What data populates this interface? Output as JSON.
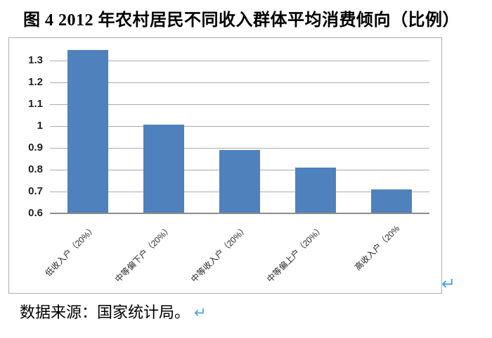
{
  "title": "图 4 2012 年农村居民不同收入群体平均消费倾向（比例）",
  "source_note": "数据来源：国家统计局。",
  "line_break_mark": "↵",
  "colors": {
    "bar": "#4f81bd",
    "gridline": "#ababab",
    "axis": "#8c8c8c",
    "frame_border": "#aeaeae",
    "break_mark_blue": "#47a3f3",
    "text": "#000000"
  },
  "chart_data": {
    "type": "bar",
    "categories": [
      "低收入户（20%）",
      "中等偏下户（20%）",
      "中等收入户（20%）",
      "中等偏上户（20%）",
      "高收入户（20%"
    ],
    "values": [
      1.35,
      1.005,
      0.89,
      0.81,
      0.71
    ],
    "title": "",
    "xlabel": "",
    "ylabel": "",
    "ylim": [
      0.6,
      1.39
    ],
    "yticks": [
      0.6,
      0.7,
      0.8,
      0.9,
      1,
      1.1,
      1.2,
      1.3
    ],
    "ytick_labels": [
      "0.6",
      "0.7",
      "0.8",
      "0.9",
      "1",
      "1.1",
      "1.2",
      "1.3"
    ],
    "grid": true,
    "legend": false,
    "bar_color": "#4f81bd"
  }
}
